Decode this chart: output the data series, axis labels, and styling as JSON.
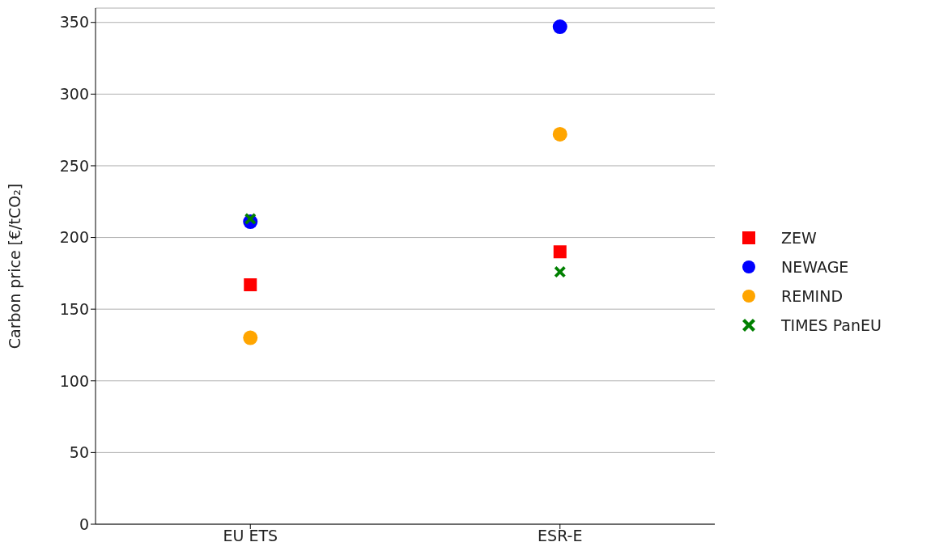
{
  "chart_data": {
    "type": "scatter",
    "ylabel": "Carbon price [€/tCO₂]",
    "categories": [
      "EU ETS",
      "ESR-E"
    ],
    "series": [
      {
        "name": "ZEW",
        "color": "#ff0000",
        "marker": "square",
        "values": [
          167,
          190
        ]
      },
      {
        "name": "NEWAGE",
        "color": "#0000ff",
        "marker": "circle",
        "values": [
          211,
          347
        ]
      },
      {
        "name": "REMIND",
        "color": "#ffa500",
        "marker": "circle",
        "values": [
          130,
          272
        ]
      },
      {
        "name": "TIMES PanEU",
        "color": "#008000",
        "marker": "cross",
        "values": [
          213,
          176
        ]
      }
    ],
    "ylim": [
      0,
      360
    ],
    "yticks": [
      0,
      50,
      100,
      150,
      200,
      250,
      300,
      350
    ],
    "grid": "y",
    "legend": "right"
  }
}
